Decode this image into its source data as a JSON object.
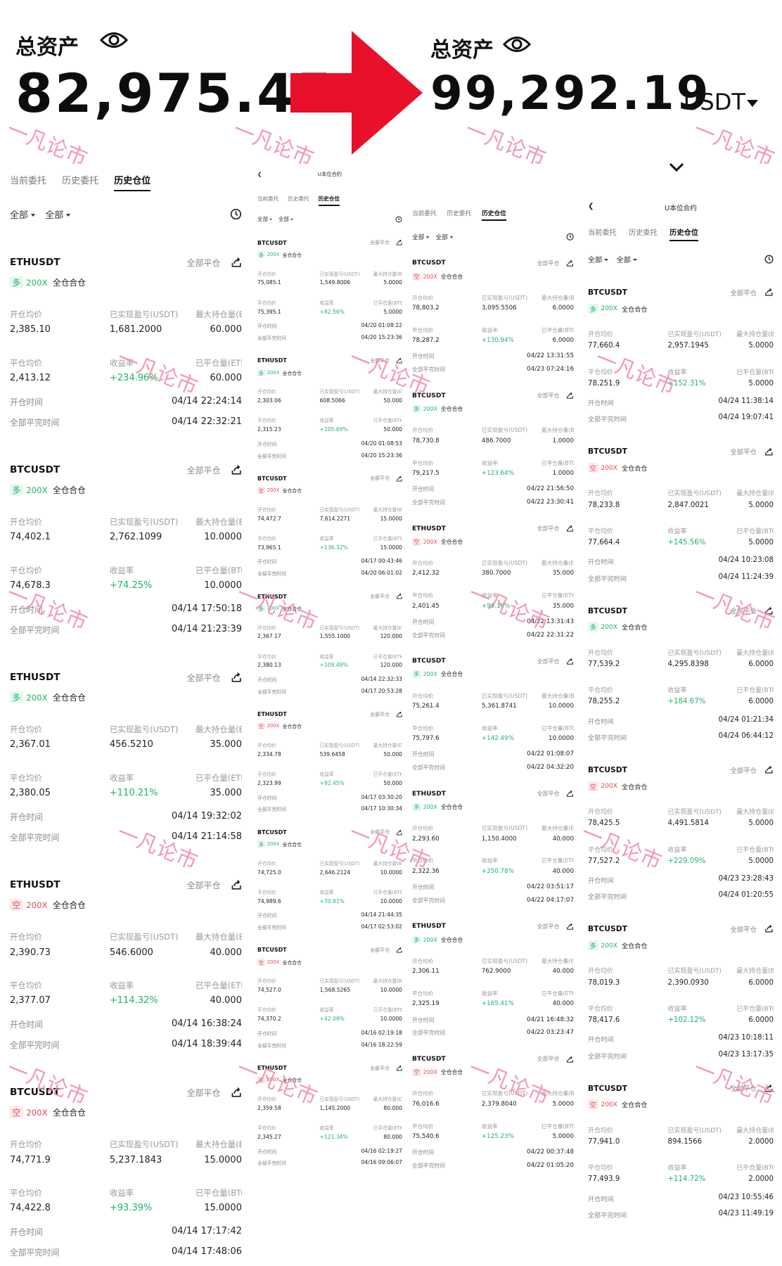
{
  "left_total": {
    "title": "总资产",
    "value": "82,975.45"
  },
  "right_total": {
    "title": "总资产",
    "value": "99,292.19",
    "unit": "USDT"
  },
  "watermark": "一凡论市",
  "labels": {
    "nav_title": "U本位合约",
    "tabs": [
      "当前委托",
      "历史委托",
      "历史仓位"
    ],
    "filter_all": "全部",
    "close_all": "全部平仓",
    "mode": "全仓合仓",
    "open_avg": "开仓均价",
    "realized_pnl": "已实现盈亏(USDT)",
    "max_pos": "最大持仓量",
    "close_avg": "平仓均价",
    "roi": "收益率",
    "closed_qty": "已平仓量",
    "open_time": "开仓时间",
    "close_time": "全部平完时间"
  },
  "colors": {
    "long": "#1fb36c",
    "short": "#e5484d",
    "watermark": "#f08aa8",
    "arrow": "#e8102a"
  },
  "col1": [
    {
      "symbol": "ETHUSDT",
      "dir": "多",
      "dir_type": "long",
      "leverage": "200X",
      "open_avg": "2,385.10",
      "pnl": "1,681.2000",
      "max_pos_label": "最大持仓量(ETH)",
      "max_pos": "60.000",
      "close_avg": "2,413.12",
      "roi": "+234.96%",
      "closed_label": "已平仓量(ETH)",
      "closed": "60.000",
      "open_time": "04/14 22:24:14",
      "close_time": "04/14 22:32:21"
    },
    {
      "symbol": "BTCUSDT",
      "dir": "多",
      "dir_type": "long",
      "leverage": "200X",
      "open_avg": "74,402.1",
      "pnl": "2,762.1099",
      "max_pos_label": "最大持仓量(BTC)",
      "max_pos": "10.0000",
      "close_avg": "74,678.3",
      "roi": "+74.25%",
      "closed_label": "已平仓量(BTC)",
      "closed": "10.0000",
      "open_time": "04/14 17:50:18",
      "close_time": "04/14 21:23:39"
    },
    {
      "symbol": "ETHUSDT",
      "dir": "多",
      "dir_type": "long",
      "leverage": "200X",
      "open_avg": "2,367.01",
      "pnl": "456.5210",
      "max_pos_label": "最大持仓量(ETH)",
      "max_pos": "35.000",
      "close_avg": "2,380.05",
      "roi": "+110.21%",
      "closed_label": "已平仓量(ETH)",
      "closed": "35.000",
      "open_time": "04/14 19:32:02",
      "close_time": "04/14 21:14:58"
    },
    {
      "symbol": "ETHUSDT",
      "dir": "空",
      "dir_type": "short",
      "leverage": "200X",
      "open_avg": "2,390.73",
      "pnl": "546.6000",
      "max_pos_label": "最大持仓量(ETH)",
      "max_pos": "40.000",
      "close_avg": "2,377.07",
      "roi": "+114.32%",
      "closed_label": "已平仓量(ETH)",
      "closed": "40.000",
      "open_time": "04/14 16:38:24",
      "close_time": "04/14 18:39:44"
    },
    {
      "symbol": "BTCUSDT",
      "dir": "空",
      "dir_type": "short",
      "leverage": "200X",
      "open_avg": "74,771.9",
      "pnl": "5,237.1843",
      "max_pos_label": "最大持仓量(BTC)",
      "max_pos": "15.0000",
      "close_avg": "74,422.8",
      "roi": "+93.39%",
      "closed_label": "已平仓量(BTC)",
      "closed": "15.0000",
      "open_time": "04/14 17:17:42",
      "close_time": "04/14 17:48:06"
    }
  ],
  "col2": [
    {
      "symbol": "BTCUSDT",
      "dir": "多",
      "dir_type": "long",
      "leverage": "200X",
      "open_avg": "75,085.1",
      "pnl": "1,549.8006",
      "max_pos_label": "最大持仓量(BTC)",
      "max_pos": "5.0000",
      "close_avg": "75,395.1",
      "roi": "+82.56%",
      "closed_label": "已平仓量(BTC)",
      "closed": "5.0000",
      "open_time": "04/20 01:08:22",
      "close_time": "04/20 15:23:36"
    },
    {
      "symbol": "ETHUSDT",
      "dir": "多",
      "dir_type": "long",
      "leverage": "200X",
      "open_avg": "2,303.06",
      "pnl": "608.5066",
      "max_pos_label": "最大持仓量(ETH)",
      "max_pos": "50.000",
      "close_avg": "2,315.23",
      "roi": "+105.69%",
      "closed_label": "已平仓量(ETH)",
      "closed": "50.000",
      "open_time": "04/20 01:08:53",
      "close_time": "04/20 15:23:36"
    },
    {
      "symbol": "BTCUSDT",
      "dir": "空",
      "dir_type": "short",
      "leverage": "200X",
      "open_avg": "74,472.7",
      "pnl": "7,614.2271",
      "max_pos_label": "最大持仓量(BTC)",
      "max_pos": "15.0000",
      "close_avg": "73,965.1",
      "roi": "+136.32%",
      "closed_label": "已平仓量(BTC)",
      "closed": "15.0000",
      "open_time": "04/17 00:43:46",
      "close_time": "04/20 06:01:02"
    },
    {
      "symbol": "ETHUSDT",
      "dir": "多",
      "dir_type": "long",
      "leverage": "200X",
      "open_avg": "2,367.17",
      "pnl": "1,555.1000",
      "max_pos_label": "最大持仓量(ETH)",
      "max_pos": "120.000",
      "close_avg": "2,380.13",
      "roi": "+109.49%",
      "closed_label": "已平仓量(ETH)",
      "closed": "120.000",
      "open_time": "04/14 22:32:33",
      "close_time": "04/17 20:53:28"
    },
    {
      "symbol": "ETHUSDT",
      "dir": "空",
      "dir_type": "short",
      "leverage": "200X",
      "open_avg": "2,334.78",
      "pnl": "539.6458",
      "max_pos_label": "最大持仓量(ETH)",
      "max_pos": "50.000",
      "close_avg": "2,323.99",
      "roi": "+92.45%",
      "closed_label": "已平仓量(ETH)",
      "closed": "50.000",
      "open_time": "04/17 03:30:20",
      "close_time": "04/17 10:30:34"
    },
    {
      "symbol": "BTCUSDT",
      "dir": "多",
      "dir_type": "long",
      "leverage": "200X",
      "open_avg": "74,725.0",
      "pnl": "2,646.2124",
      "max_pos_label": "最大持仓量(BTC)",
      "max_pos": "10.0000",
      "close_avg": "74,989.6",
      "roi": "+70.81%",
      "closed_label": "已平仓量(BTC)",
      "closed": "10.0000",
      "open_time": "04/14 21:44:35",
      "close_time": "04/17 02:53:02"
    },
    {
      "symbol": "BTCUSDT",
      "dir": "空",
      "dir_type": "short",
      "leverage": "200X",
      "open_avg": "74,527.0",
      "pnl": "1,568.5265",
      "max_pos_label": "最大持仓量(BTC)",
      "max_pos": "10.0000",
      "close_avg": "74,370.2",
      "roi": "+42.09%",
      "closed_label": "已平仓量(BTC)",
      "closed": "10.0000",
      "open_time": "04/16 02:19:18",
      "close_time": "04/16 18:22:59"
    },
    {
      "symbol": "ETHUSDT",
      "dir": "空",
      "dir_type": "short",
      "leverage": "200X",
      "open_avg": "2,359.58",
      "pnl": "1,145.2000",
      "max_pos_label": "最大持仓量(ETH)",
      "max_pos": "80.000",
      "close_avg": "2,345.27",
      "roi": "+121.34%",
      "closed_label": "已平仓量(ETH)",
      "closed": "80.000",
      "open_time": "04/16 02:19:27",
      "close_time": "04/16 09:06:07"
    }
  ],
  "col3": [
    {
      "symbol": "BTCUSDT",
      "dir": "空",
      "dir_type": "short",
      "leverage": "200X",
      "open_avg": "78,803.2",
      "pnl": "3,095.5506",
      "max_pos_label": "最大持仓量(BTC)",
      "max_pos": "6.0000",
      "close_avg": "78,287.2",
      "roi": "+130.94%",
      "closed_label": "已平仓量(BTC)",
      "closed": "6.0000",
      "open_time": "04/22 13:31:55",
      "close_time": "04/23 07:24:16"
    },
    {
      "symbol": "BTCUSDT",
      "dir": "多",
      "dir_type": "long",
      "leverage": "200X",
      "open_avg": "78,730.8",
      "pnl": "486.7000",
      "max_pos_label": "最大持仓量(BTC)",
      "max_pos": "1.0000",
      "close_avg": "79,217.5",
      "roi": "+123.64%",
      "closed_label": "已平仓量(BTC)",
      "closed": "1.0000",
      "open_time": "04/22 21:56:50",
      "close_time": "04/22 23:30:41"
    },
    {
      "symbol": "ETHUSDT",
      "dir": "空",
      "dir_type": "short",
      "leverage": "200X",
      "open_avg": "2,412.32",
      "pnl": "380.7000",
      "max_pos_label": "最大持仓量(ETH)",
      "max_pos": "35.000",
      "close_avg": "2,401.45",
      "roi": "+90.18%",
      "closed_label": "已平仓量(ETH)",
      "closed": "35.000",
      "open_time": "04/22 13:31:43",
      "close_time": "04/22 22:31:22"
    },
    {
      "symbol": "BTCUSDT",
      "dir": "多",
      "dir_type": "long",
      "leverage": "200X",
      "open_avg": "75,261.4",
      "pnl": "5,361.8741",
      "max_pos_label": "最大持仓量(BTC)",
      "max_pos": "10.0000",
      "close_avg": "75,797.6",
      "roi": "+142.49%",
      "closed_label": "已平仓量(BTC)",
      "closed": "10.0000",
      "open_time": "04/22 01:08:07",
      "close_time": "04/22 04:32:20"
    },
    {
      "symbol": "ETHUSDT",
      "dir": "多",
      "dir_type": "long",
      "leverage": "200X",
      "open_avg": "2,293.60",
      "pnl": "1,150.4000",
      "max_pos_label": "最大持仓量(ETH)",
      "max_pos": "40.000",
      "close_avg": "2,322.36",
      "roi": "+250.78%",
      "closed_label": "已平仓量(ETH)",
      "closed": "40.000",
      "open_time": "04/22 03:51:17",
      "close_time": "04/22 04:17:07"
    },
    {
      "symbol": "ETHUSDT",
      "dir": "多",
      "dir_type": "long",
      "leverage": "200X",
      "open_avg": "2,306.11",
      "pnl": "762.9000",
      "max_pos_label": "最大持仓量(ETH)",
      "max_pos": "40.000",
      "close_avg": "2,325.19",
      "roi": "+165.41%",
      "closed_label": "已平仓量(ETH)",
      "closed": "40.000",
      "open_time": "04/21 16:48:32",
      "close_time": "04/22 03:23:47"
    },
    {
      "symbol": "BTCUSDT",
      "dir": "空",
      "dir_type": "short",
      "leverage": "200X",
      "open_avg": "76,016.6",
      "pnl": "2,379.8040",
      "max_pos_label": "最大持仓量(BTC)",
      "max_pos": "5.0000",
      "close_avg": "75,540.6",
      "roi": "+125.23%",
      "closed_label": "已平仓量(BTC)",
      "closed": "5.0000",
      "open_time": "04/22 00:37:48",
      "close_time": "04/22 01:05:20"
    }
  ],
  "col4": [
    {
      "symbol": "BTCUSDT",
      "dir": "多",
      "dir_type": "long",
      "leverage": "200X",
      "open_avg": "77,660.4",
      "pnl": "2,957.1945",
      "max_pos_label": "最大持仓量(BTC)",
      "max_pos": "5.0000",
      "close_avg": "78,251.9",
      "roi": "+152.31%",
      "closed_label": "已平仓量(BTC)",
      "closed": "5.0000",
      "open_time": "04/24 11:38:14",
      "close_time": "04/24 19:07:41"
    },
    {
      "symbol": "BTCUSDT",
      "dir": "空",
      "dir_type": "short",
      "leverage": "200X",
      "open_avg": "78,233.8",
      "pnl": "2,847.0021",
      "max_pos_label": "最大持仓量(BTC)",
      "max_pos": "5.0000",
      "close_avg": "77,664.4",
      "roi": "+145.56%",
      "closed_label": "已平仓量(BTC)",
      "closed": "5.0000",
      "open_time": "04/24 10:23:08",
      "close_time": "04/24 11:24:39"
    },
    {
      "symbol": "BTCUSDT",
      "dir": "多",
      "dir_type": "long",
      "leverage": "200X",
      "open_avg": "77,539.2",
      "pnl": "4,295.8398",
      "max_pos_label": "最大持仓量(BTC)",
      "max_pos": "6.0000",
      "close_avg": "78,255.2",
      "roi": "+184.67%",
      "closed_label": "已平仓量(BTC)",
      "closed": "6.0000",
      "open_time": "04/24 01:21:34",
      "close_time": "04/24 06:44:12"
    },
    {
      "symbol": "BTCUSDT",
      "dir": "空",
      "dir_type": "short",
      "leverage": "200X",
      "open_avg": "78,425.5",
      "pnl": "4,491.5814",
      "max_pos_label": "最大持仓量(BTC)",
      "max_pos": "5.0000",
      "close_avg": "77,527.2",
      "roi": "+229.09%",
      "closed_label": "已平仓量(BTC)",
      "closed": "5.0000",
      "open_time": "04/23 23:28:43",
      "close_time": "04/24 01:20:55"
    },
    {
      "symbol": "BTCUSDT",
      "dir": "多",
      "dir_type": "long",
      "leverage": "200X",
      "open_avg": "78,019.3",
      "pnl": "2,390.0930",
      "max_pos_label": "最大持仓量(BTC)",
      "max_pos": "6.0000",
      "close_avg": "78,417.6",
      "roi": "+102.12%",
      "closed_label": "已平仓量(BTC)",
      "closed": "6.0000",
      "open_time": "04/23 10:18:11",
      "close_time": "04/23 13:17:35"
    },
    {
      "symbol": "BTCUSDT",
      "dir": "空",
      "dir_type": "short",
      "leverage": "200X",
      "open_avg": "77,941.0",
      "pnl": "894.1566",
      "max_pos_label": "最大持仓量(BTC)",
      "max_pos": "2.0000",
      "close_avg": "77,493.9",
      "roi": "+114.72%",
      "closed_label": "已平仓量(BTC)",
      "closed": "2.0000",
      "open_time": "04/23 10:55:46",
      "close_time": "04/23 11:49:19"
    }
  ]
}
